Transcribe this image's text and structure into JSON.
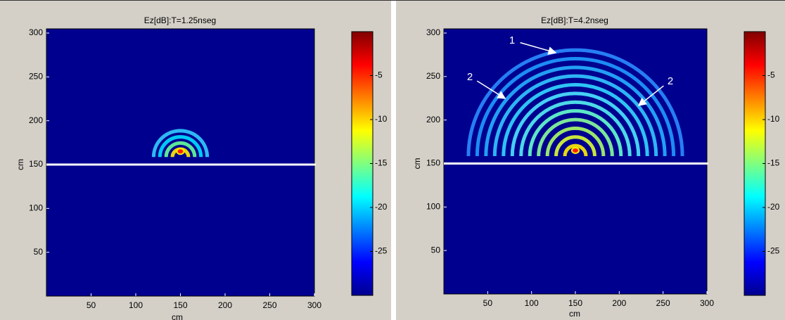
{
  "chart_data": [
    {
      "type": "heatmap",
      "title": "Ez[dB]:T=1.25nseg",
      "xlabel": "cm",
      "ylabel": "cm",
      "xlim": [
        0,
        300
      ],
      "ylim": [
        0,
        300
      ],
      "xticks": [
        50,
        100,
        150,
        200,
        250,
        300
      ],
      "yticks": [
        50,
        100,
        150,
        200,
        250,
        300
      ],
      "boundary": 150,
      "colorbar": {
        "lim": [
          -30,
          0
        ],
        "ticks": [
          -5,
          -10,
          -15,
          -20,
          -25
        ]
      },
      "annotations": []
    },
    {
      "type": "heatmap",
      "title": "Ez[dB]:T=4.2nseg",
      "xlabel": "cm",
      "ylabel": "cm",
      "xlim": [
        0,
        300
      ],
      "ylim": [
        0,
        300
      ],
      "xticks": [
        50,
        100,
        150,
        200,
        250,
        300
      ],
      "yticks": [
        50,
        100,
        150,
        200,
        250,
        300
      ],
      "boundary": 150,
      "colorbar": {
        "lim": [
          -30,
          0
        ],
        "ticks": [
          -5,
          -10,
          -15,
          -20,
          -25
        ]
      },
      "annotations": [
        {
          "text": "1"
        },
        {
          "text": "2"
        },
        {
          "text": "2"
        }
      ]
    }
  ]
}
